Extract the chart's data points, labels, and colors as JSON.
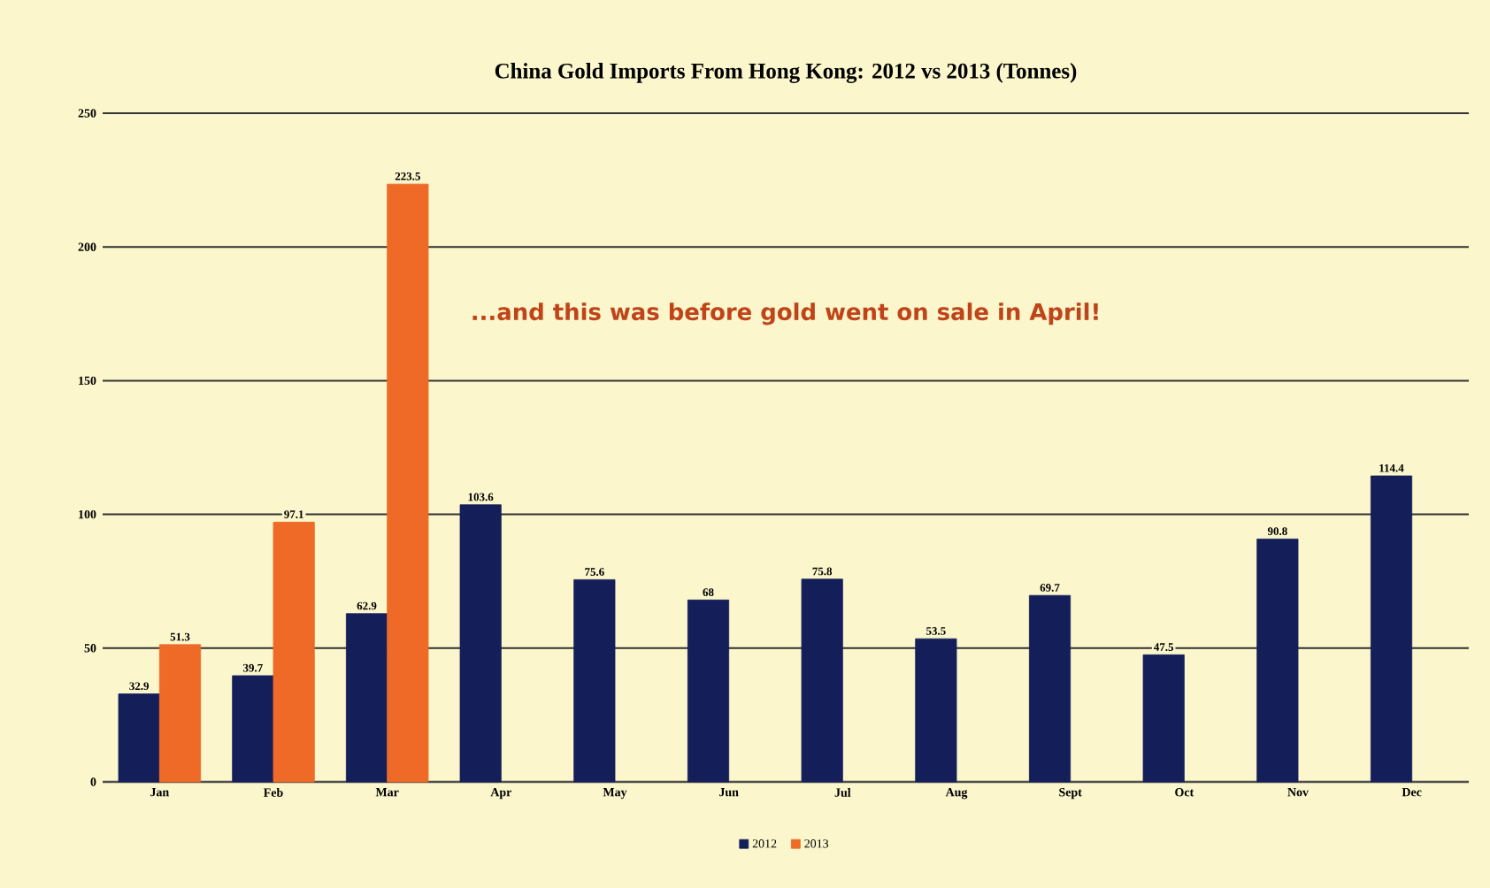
{
  "chart_data": {
    "type": "bar",
    "title": "China Gold Imports From Hong Kong: 2012 vs 2013 (Tonnes)",
    "categories": [
      "Jan",
      "Feb",
      "Mar",
      "Apr",
      "May",
      "Jun",
      "Jul",
      "Aug",
      "Sept",
      "Oct",
      "Nov",
      "Dec"
    ],
    "series": [
      {
        "name": "2012",
        "color": "#141f5a",
        "values": [
          32.9,
          39.7,
          62.9,
          103.6,
          75.6,
          68,
          75.8,
          53.5,
          69.7,
          47.5,
          90.8,
          114.4
        ]
      },
      {
        "name": "2013",
        "color": "#ee6a26",
        "values": [
          51.3,
          97.1,
          223.5,
          null,
          null,
          null,
          null,
          null,
          null,
          null,
          null,
          null
        ]
      }
    ],
    "ylim": [
      0,
      250
    ],
    "yticks": [
      0,
      50,
      100,
      150,
      200,
      250
    ],
    "grid": "y",
    "legend": "bottom",
    "data_labels": true,
    "annotations": [
      "...and this was before gold went on sale in April!"
    ]
  }
}
